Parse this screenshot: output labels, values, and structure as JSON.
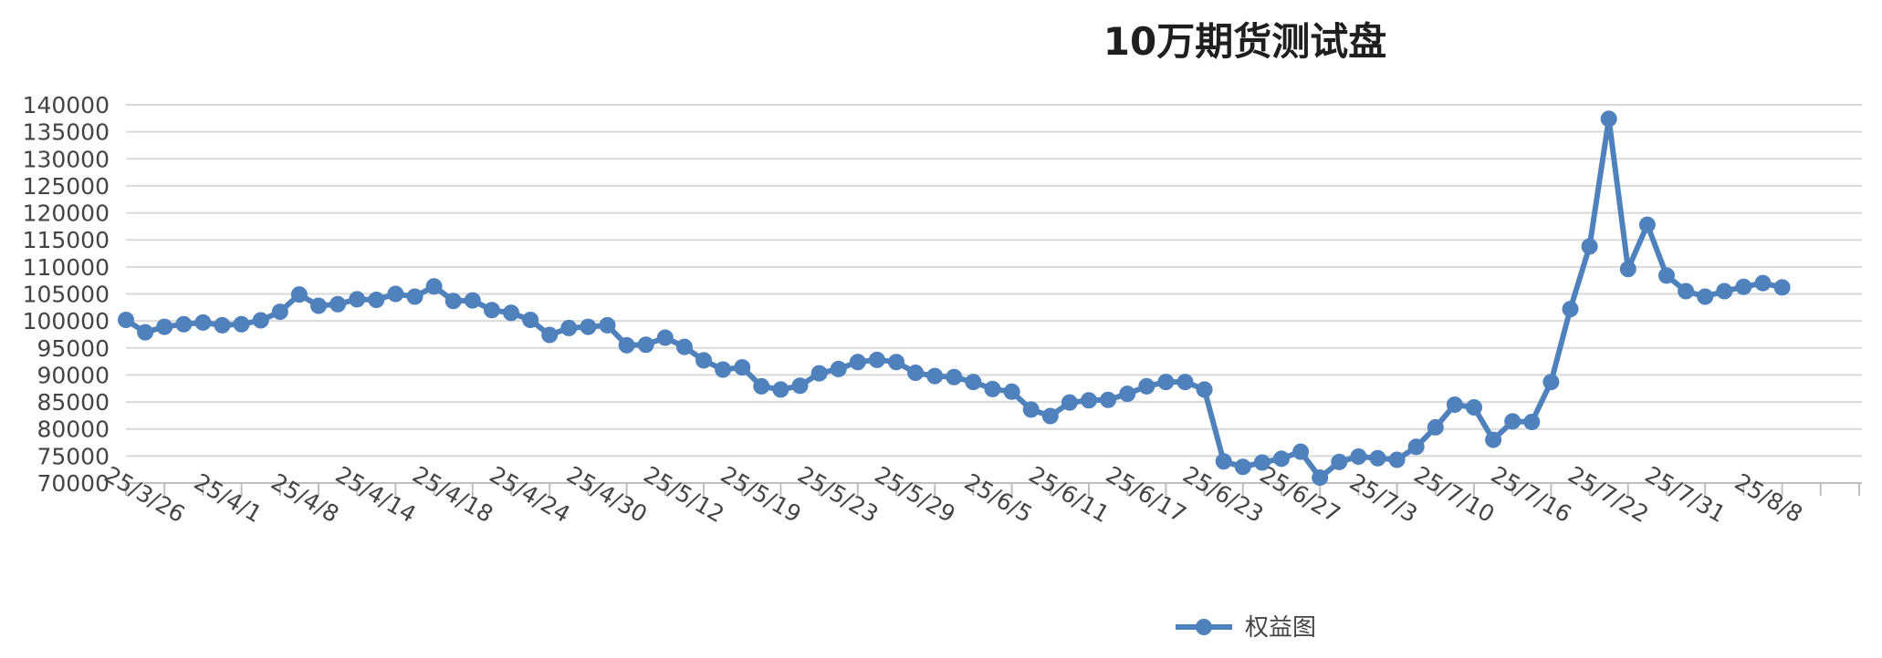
{
  "chart_data": {
    "type": "line",
    "title": "10万期货测试盘",
    "xlabel": "",
    "ylabel": "",
    "ylim": [
      70000,
      140000
    ],
    "y_ticks": [
      140000,
      135000,
      130000,
      125000,
      120000,
      115000,
      110000,
      105000,
      100000,
      95000,
      90000,
      85000,
      80000,
      75000,
      70000
    ],
    "x_tick_labels": [
      "25/3/26",
      "25/4/1",
      "25/4/8",
      "25/4/14",
      "25/4/18",
      "25/4/24",
      "25/4/30",
      "25/5/12",
      "25/5/19",
      "25/5/23",
      "25/5/29",
      "25/6/5",
      "25/6/11",
      "25/6/17",
      "25/6/23",
      "25/6/27",
      "25/7/3",
      "25/7/10",
      "25/7/16",
      "25/7/22",
      "25/7/31",
      "25/8/8"
    ],
    "grid": true,
    "legend_position": "bottom",
    "color": "#4f81bd",
    "series": [
      {
        "name": "权益图",
        "values": [
          100200,
          97900,
          98900,
          99400,
          99700,
          99200,
          99400,
          100100,
          101700,
          104900,
          102800,
          103100,
          104000,
          103900,
          105000,
          104500,
          106400,
          103700,
          103800,
          102000,
          101500,
          100200,
          97400,
          98700,
          98900,
          99200,
          95500,
          95600,
          96900,
          95200,
          92700,
          91000,
          91400,
          87900,
          87300,
          88000,
          90300,
          91100,
          92400,
          92800,
          92400,
          90400,
          89800,
          89600,
          88700,
          87400,
          86900,
          83600,
          82400,
          84900,
          85300,
          85400,
          86500,
          87900,
          88700,
          88700,
          87300,
          74000,
          73000,
          73800,
          74500,
          75800,
          71000,
          73900,
          74900,
          74600,
          74300,
          76700,
          80300,
          84500,
          84000,
          78000,
          81400,
          81300,
          88700,
          102200,
          113800,
          137400,
          109600,
          117800,
          108400,
          105500,
          104500,
          105500,
          106300,
          107000,
          106200
        ]
      }
    ]
  }
}
